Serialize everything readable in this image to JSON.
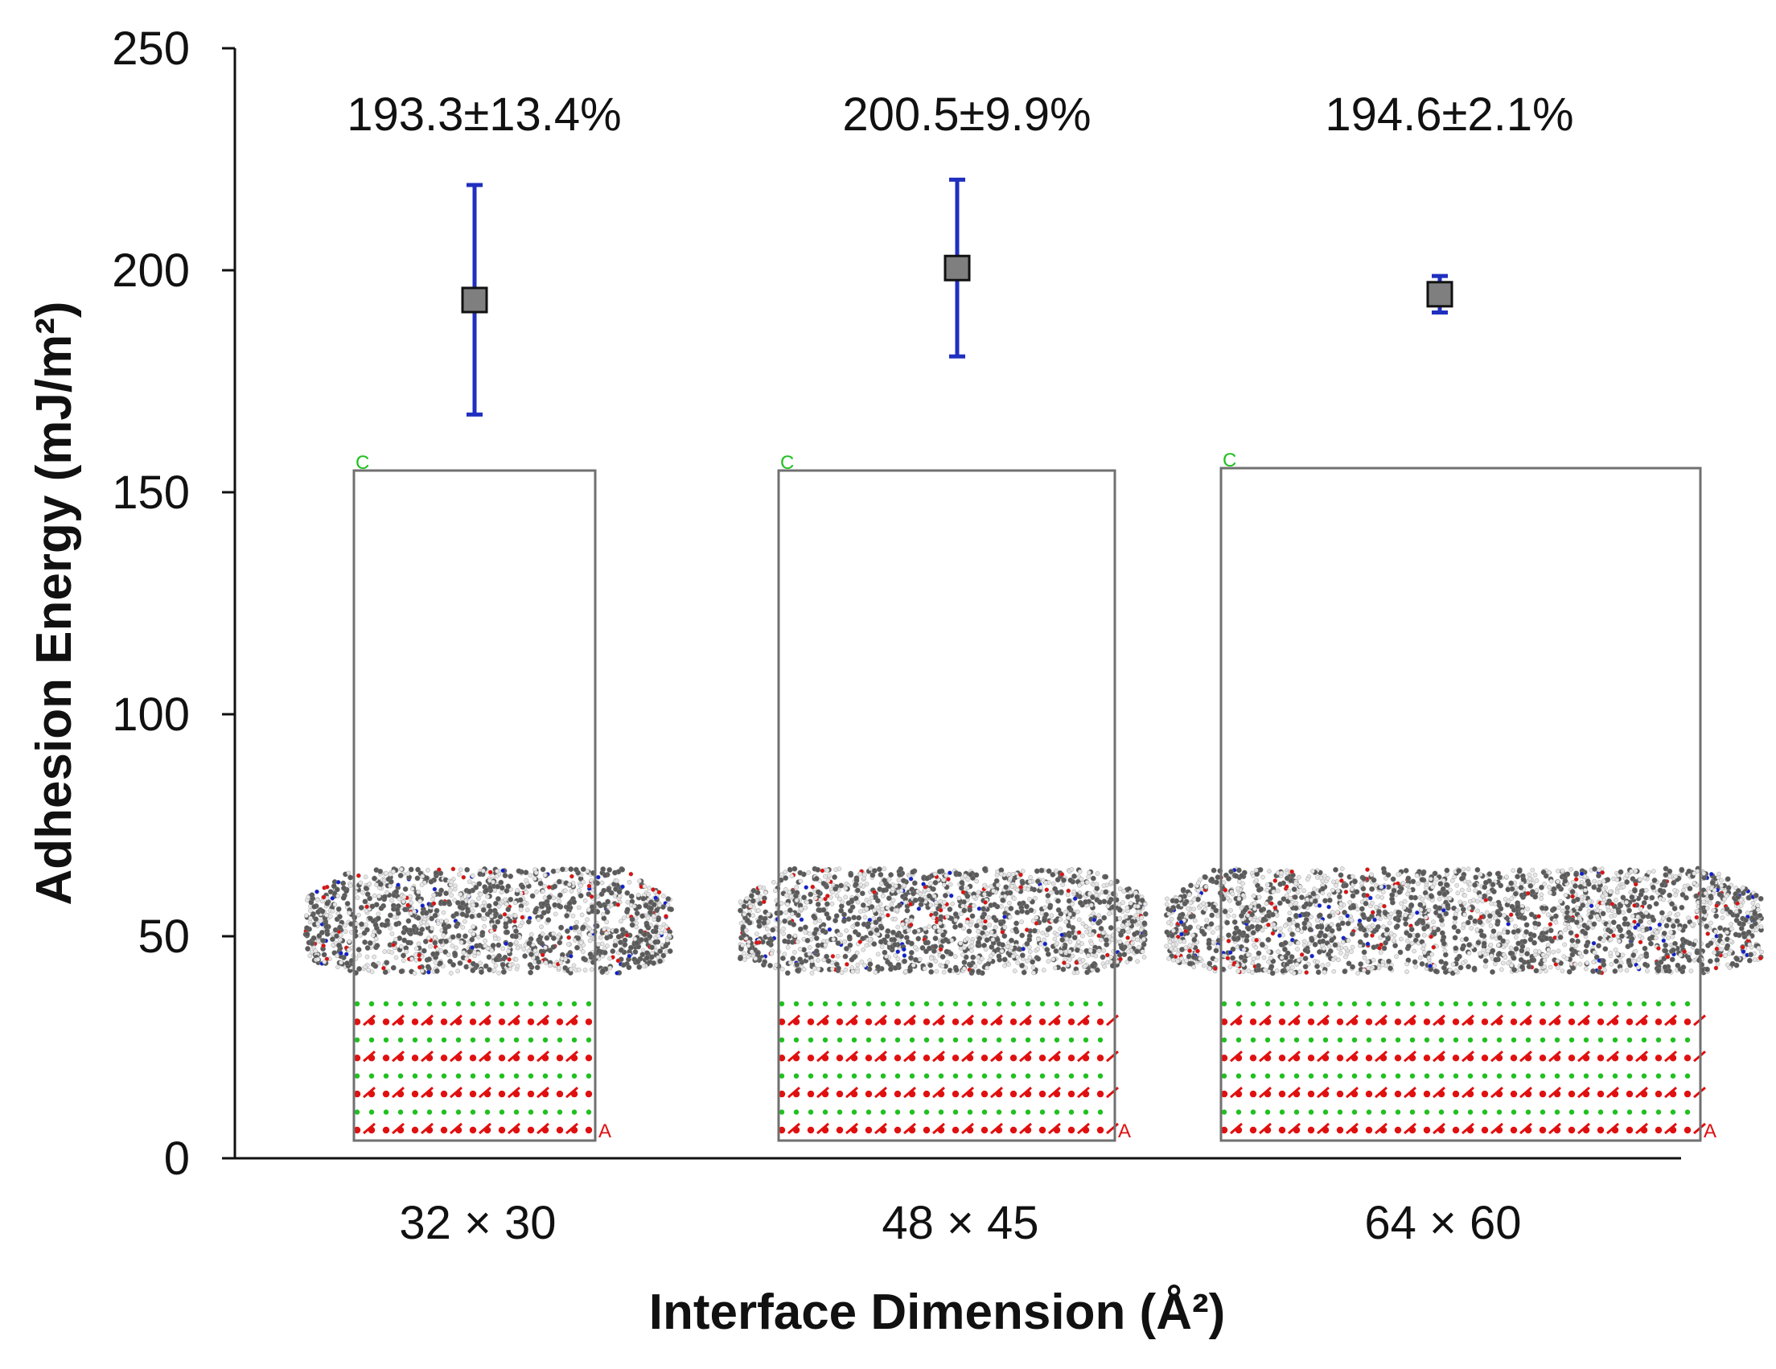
{
  "chart_data": {
    "type": "scatter",
    "title": "",
    "xlabel": "Interface Dimension (Å²)",
    "ylabel": "Adhesion Energy (mJ/m²)",
    "ylim": [
      0,
      250
    ],
    "yticks": [
      0,
      50,
      100,
      150,
      200,
      250
    ],
    "grid": false,
    "categories": [
      "32 × 30",
      "48 × 45",
      "64 × 60"
    ],
    "series": [
      {
        "name": "Adhesion Energy",
        "values": [
          193.3,
          200.5,
          194.6
        ],
        "error_low": [
          167.5,
          180.6,
          190.5
        ],
        "error_high": [
          219.2,
          220.4,
          198.7
        ],
        "marker_color": "#7f7f7f",
        "error_color": "#1f2fbf"
      }
    ],
    "annotations": [
      "193.3±13.4%",
      "200.5±9.9%",
      "194.6±2.1%"
    ],
    "inset_labels": {
      "c_axis": "C",
      "a_axis": "A"
    }
  },
  "colors": {
    "oxygen": "#e01010",
    "substrate_metal": "#20c020",
    "carbon": "#5a5a5a",
    "hydrogen": "#e6e6e6",
    "nitrogen": "#1020d0",
    "box": "#707070"
  }
}
